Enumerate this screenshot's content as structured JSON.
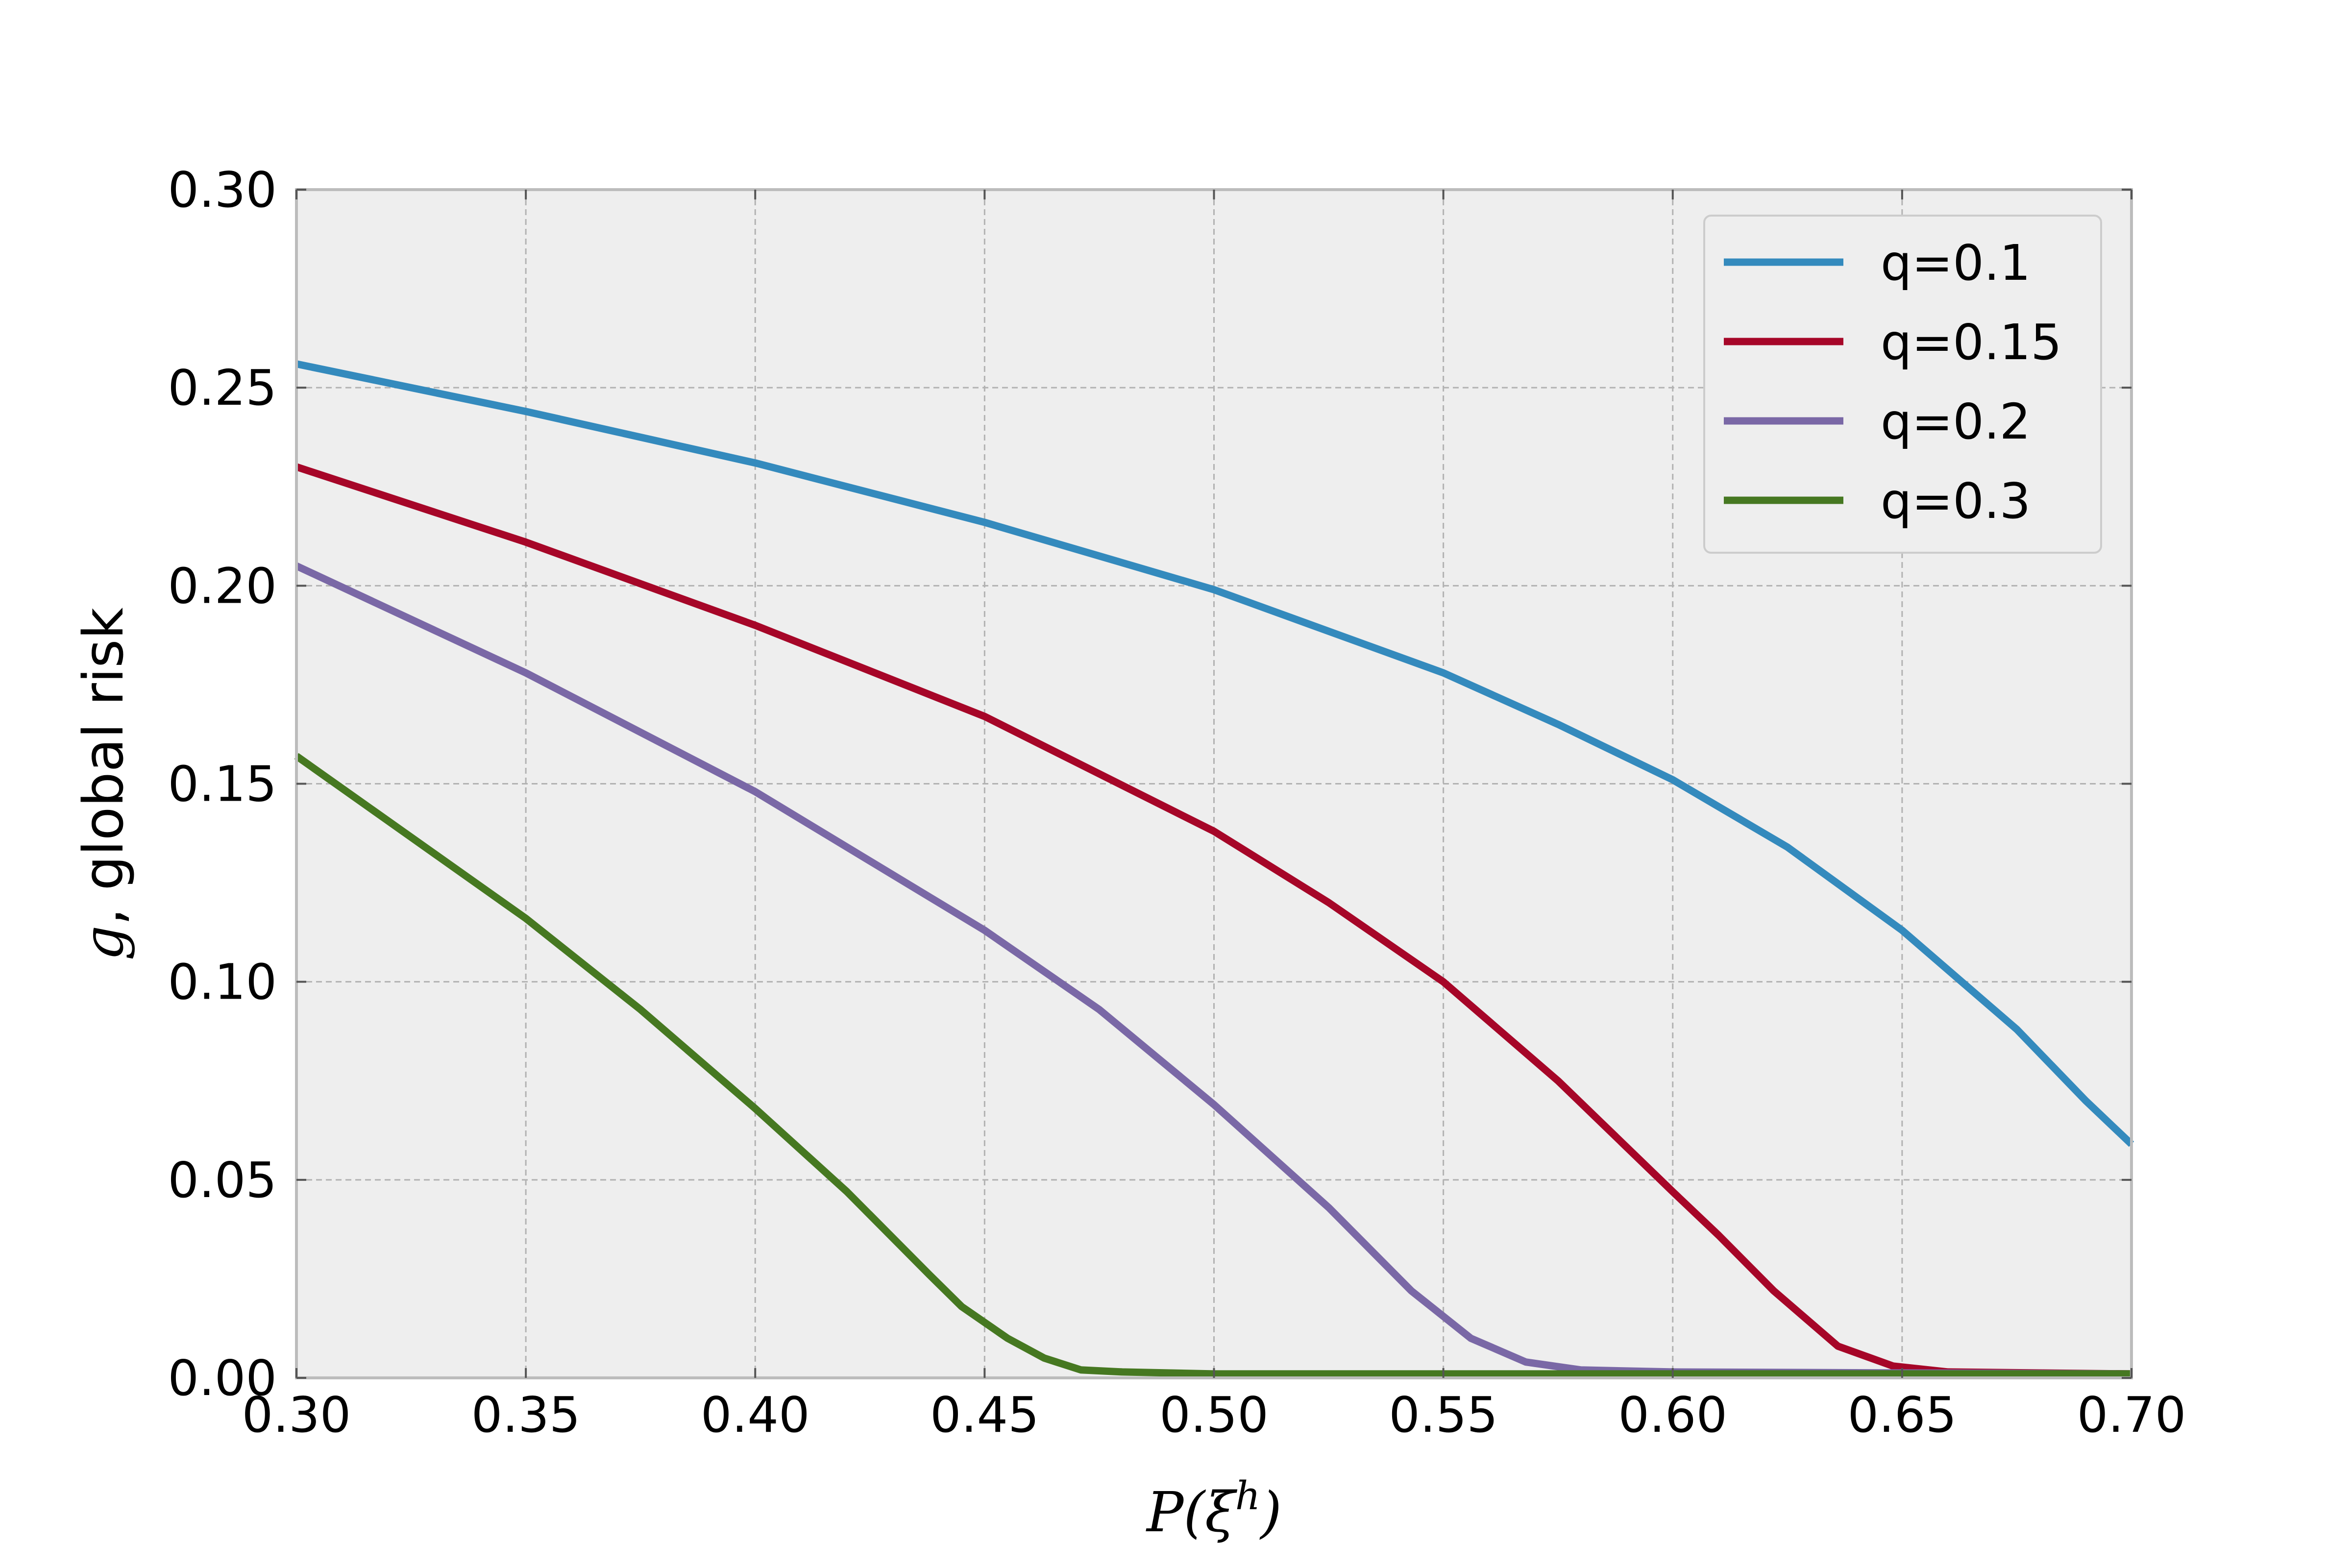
{
  "chart_data": {
    "type": "line",
    "title": "",
    "xlabel": "P(ξ^h)",
    "ylabel_var": "g",
    "ylabel_rest": ", global risk",
    "xlim": [
      0.3,
      0.7
    ],
    "ylim": [
      0.0,
      0.3
    ],
    "xticks": [
      "0.30",
      "0.35",
      "0.40",
      "0.45",
      "0.50",
      "0.55",
      "0.60",
      "0.65",
      "0.70"
    ],
    "yticks": [
      "0.00",
      "0.05",
      "0.10",
      "0.15",
      "0.20",
      "0.25",
      "0.30"
    ],
    "grid": true,
    "legend_position": "top-right",
    "series": [
      {
        "name": "q=0.1",
        "color": "#348ABD",
        "x": [
          0.3,
          0.35,
          0.4,
          0.45,
          0.5,
          0.55,
          0.575,
          0.6,
          0.625,
          0.65,
          0.675,
          0.69,
          0.7
        ],
        "y": [
          0.256,
          0.244,
          0.231,
          0.216,
          0.199,
          0.178,
          0.165,
          0.151,
          0.134,
          0.113,
          0.088,
          0.07,
          0.059
        ]
      },
      {
        "name": "q=0.15",
        "color": "#A60628",
        "x": [
          0.3,
          0.35,
          0.4,
          0.45,
          0.5,
          0.525,
          0.55,
          0.575,
          0.6,
          0.61,
          0.622,
          0.636,
          0.648,
          0.66,
          0.7
        ],
        "y": [
          0.23,
          0.211,
          0.19,
          0.167,
          0.138,
          0.12,
          0.1,
          0.075,
          0.047,
          0.036,
          0.022,
          0.008,
          0.003,
          0.0015,
          0.001
        ]
      },
      {
        "name": "q=0.2",
        "color": "#7A68A6",
        "x": [
          0.3,
          0.35,
          0.4,
          0.45,
          0.475,
          0.5,
          0.525,
          0.543,
          0.556,
          0.568,
          0.58,
          0.6,
          0.7
        ],
        "y": [
          0.205,
          0.178,
          0.148,
          0.113,
          0.093,
          0.069,
          0.043,
          0.022,
          0.01,
          0.004,
          0.002,
          0.0015,
          0.001
        ]
      },
      {
        "name": "q=0.3",
        "color": "#467821",
        "x": [
          0.3,
          0.35,
          0.375,
          0.4,
          0.42,
          0.438,
          0.445,
          0.455,
          0.463,
          0.471,
          0.48,
          0.5,
          0.7
        ],
        "y": [
          0.157,
          0.116,
          0.093,
          0.068,
          0.047,
          0.026,
          0.018,
          0.01,
          0.005,
          0.002,
          0.0015,
          0.001,
          0.001
        ]
      }
    ]
  }
}
